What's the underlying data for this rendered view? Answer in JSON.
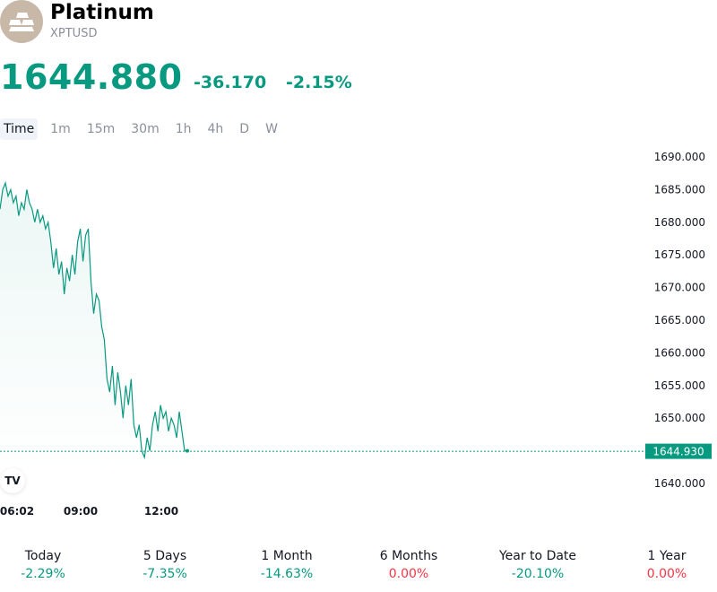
{
  "instrument": {
    "name": "Platinum",
    "symbol": "XPTUSD",
    "price": "1644.880",
    "change": "-36.170",
    "change_percent": "-2.15%",
    "logo_icon": "gold-bars-icon",
    "accent_color": "#089981"
  },
  "timeframes": {
    "active": "Time",
    "items": [
      "Time",
      "1m",
      "15m",
      "30m",
      "1h",
      "4h",
      "D",
      "W"
    ]
  },
  "chart_data": {
    "type": "area",
    "ylim": [
      1636,
      1692
    ],
    "y_ticks": [
      "1690.000",
      "1685.000",
      "1680.000",
      "1675.000",
      "1670.000",
      "1665.000",
      "1660.000",
      "1655.000",
      "1650.000",
      "1640.000"
    ],
    "x_ticks": [
      "06:02",
      "09:00",
      "12:00"
    ],
    "last_value": "1644.930",
    "line_color": "#089981",
    "series": [
      {
        "values": [
          1682,
          1685,
          1686,
          1684,
          1685,
          1683,
          1684,
          1681,
          1683,
          1682,
          1685,
          1683,
          1682,
          1680,
          1682,
          1680,
          1681,
          1679,
          1680,
          1677,
          1673,
          1676,
          1672,
          1674,
          1669,
          1673,
          1671,
          1675,
          1672,
          1677,
          1679,
          1674,
          1678,
          1679,
          1671,
          1666,
          1669,
          1668,
          1664,
          1662,
          1656,
          1654,
          1658,
          1652,
          1657,
          1654,
          1650,
          1655,
          1652,
          1656,
          1649,
          1647,
          1649,
          1645,
          1644,
          1647,
          1645,
          1649,
          1651,
          1648,
          1652,
          1650,
          1651,
          1648,
          1650,
          1649,
          1647,
          1651,
          1648,
          1645,
          1645
        ]
      }
    ]
  },
  "tv_badge": "TV",
  "performance": [
    {
      "label": "Today",
      "value": "-2.29%",
      "trend": "up"
    },
    {
      "label": "5 Days",
      "value": "-7.35%",
      "trend": "up"
    },
    {
      "label": "1 Month",
      "value": "-14.63%",
      "trend": "up"
    },
    {
      "label": "6 Months",
      "value": "0.00%",
      "trend": "down"
    },
    {
      "label": "Year to Date",
      "value": "-20.10%",
      "trend": "up"
    },
    {
      "label": "1 Year",
      "value": "0.00%",
      "trend": "down"
    }
  ]
}
